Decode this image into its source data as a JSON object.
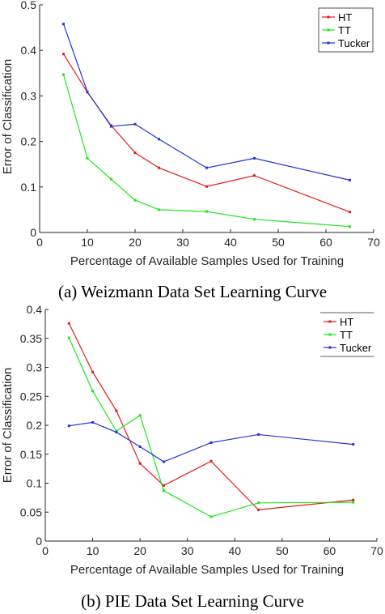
{
  "chart_data": [
    {
      "type": "line",
      "caption": "(a) Weizmann Data Set Learning Curve",
      "xlabel": "Percentage of Available Samples Used for Training",
      "ylabel": "Error of Classification",
      "xlim": [
        0,
        70
      ],
      "ylim": [
        0,
        0.5
      ],
      "xticks": [
        "0",
        "10",
        "20",
        "30",
        "40",
        "50",
        "60",
        "70"
      ],
      "yticks": [
        "0",
        "0.1",
        "0.2",
        "0.3",
        "0.4",
        "0.5"
      ],
      "legend_position": "top-right",
      "x": [
        5,
        10,
        15,
        20,
        25,
        35,
        45,
        65
      ],
      "series": [
        {
          "name": "HT",
          "color": "#e31a1c",
          "values": [
            0.392,
            0.308,
            0.235,
            0.175,
            0.142,
            0.101,
            0.125,
            0.045
          ]
        },
        {
          "name": "TT",
          "color": "#1ee61e",
          "values": [
            0.347,
            0.163,
            0.117,
            0.071,
            0.05,
            0.046,
            0.029,
            0.013
          ]
        },
        {
          "name": "Tucker",
          "color": "#1f35d6",
          "values": [
            0.458,
            0.309,
            0.233,
            0.238,
            0.205,
            0.142,
            0.163,
            0.115
          ]
        }
      ]
    },
    {
      "type": "line",
      "caption": "(b) PIE Data Set Learning Curve",
      "xlabel": "Percentage of Available Samples Used for Training",
      "ylabel": "Error of Classification",
      "xlim": [
        0,
        70
      ],
      "ylim": [
        0,
        0.4
      ],
      "xticks": [
        "0",
        "10",
        "20",
        "30",
        "40",
        "50",
        "60",
        "70"
      ],
      "yticks": [
        "0",
        "0.05",
        "0.1",
        "0.15",
        "0.2",
        "0.25",
        "0.3",
        "0.35",
        "0.4"
      ],
      "legend_position": "top-right",
      "x": [
        5,
        10,
        15,
        20,
        25,
        35,
        45,
        65
      ],
      "series": [
        {
          "name": "HT",
          "color": "#e31a1c",
          "values": [
            0.376,
            0.292,
            0.225,
            0.134,
            0.096,
            0.138,
            0.054,
            0.071
          ]
        },
        {
          "name": "TT",
          "color": "#1ee61e",
          "values": [
            0.351,
            0.259,
            0.19,
            0.217,
            0.087,
            0.042,
            0.066,
            0.067
          ]
        },
        {
          "name": "Tucker",
          "color": "#1f35d6",
          "values": [
            0.199,
            0.205,
            0.188,
            0.163,
            0.137,
            0.17,
            0.184,
            0.167
          ]
        }
      ]
    }
  ]
}
